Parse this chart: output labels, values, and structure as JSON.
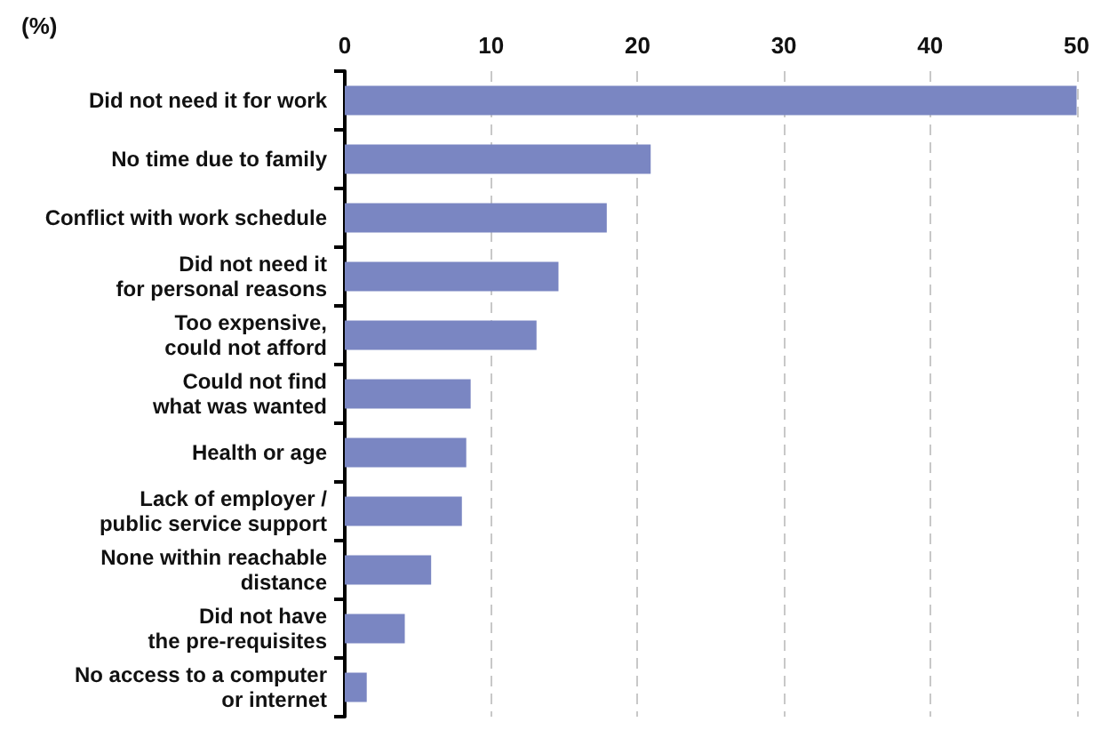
{
  "chart_data": {
    "type": "bar",
    "orientation": "horizontal",
    "xlabel": "(%)",
    "categories": [
      "Did not need it for work",
      "No time due to family",
      "Conflict with work schedule",
      "Did not need it\nfor personal reasons",
      "Too expensive,\ncould not afford",
      "Could not find\nwhat was wanted",
      "Health or age",
      "Lack of employer /\npublic service support",
      "None within reachable\ndistance",
      "Did not have\nthe pre-requisites",
      "No access to a computer\nor internet"
    ],
    "values": [
      50,
      20.9,
      17.9,
      14.6,
      13.1,
      8.6,
      8.3,
      8.0,
      5.9,
      4.1,
      1.5
    ],
    "color": "#7a86c2",
    "xlim": [
      0,
      50
    ],
    "xticks": [
      0,
      10,
      20,
      30,
      40,
      50
    ],
    "grid": "x"
  }
}
